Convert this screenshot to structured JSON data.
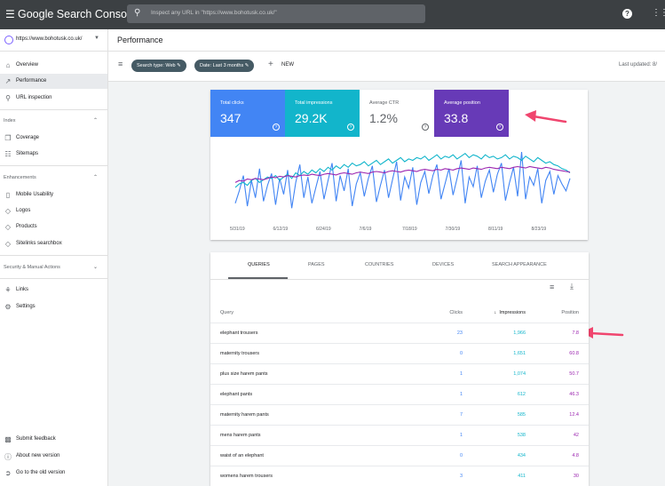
{
  "app": {
    "title": "Google Search Console"
  },
  "search": {
    "placeholder": "Inspect any URL in \"https://www.bohotusk.co.uk/\""
  },
  "property": {
    "url": "https://www.bohotusk.co.uk/"
  },
  "sidebar": {
    "items": [
      {
        "label": "Overview",
        "icon": "home-icon"
      },
      {
        "label": "Performance",
        "icon": "trending-icon",
        "active": true
      },
      {
        "label": "URL inspection",
        "icon": "search-icon"
      }
    ],
    "index_section": "Index",
    "index_items": [
      {
        "label": "Coverage",
        "icon": "file-copy-icon"
      },
      {
        "label": "Sitemaps",
        "icon": "sitemap-icon"
      }
    ],
    "enh_section": "Enhancements",
    "enh_items": [
      {
        "label": "Mobile Usability",
        "icon": "phone-icon"
      },
      {
        "label": "Logos",
        "icon": "diamond-icon"
      },
      {
        "label": "Products",
        "icon": "diamond-icon"
      },
      {
        "label": "Sitelinks searchbox",
        "icon": "diamond-icon"
      }
    ],
    "security_section": "Security & Manual Actions",
    "other_items": [
      {
        "label": "Links",
        "icon": "links-icon"
      },
      {
        "label": "Settings",
        "icon": "gear-icon"
      }
    ],
    "footer_items": [
      {
        "label": "Submit feedback",
        "icon": "feedback-icon"
      },
      {
        "label": "About new version",
        "icon": "info-icon"
      },
      {
        "label": "Go to the old version",
        "icon": "exit-icon"
      }
    ]
  },
  "header": {
    "title": "Performance"
  },
  "filters": {
    "search_type": "Search type: Web",
    "date": "Date: Last 3 months",
    "new_label": "NEW",
    "last_updated": "Last updated: 8/"
  },
  "metrics": [
    {
      "label": "Total clicks",
      "value": "347",
      "bg": "#4285f4",
      "fg": "#ffffff"
    },
    {
      "label": "Total impressions",
      "value": "29.2K",
      "bg": "#12b5cb",
      "fg": "#ffffff"
    },
    {
      "label": "Average CTR",
      "value": "1.2%",
      "bg": "#ffffff",
      "fg": "#5f6368"
    },
    {
      "label": "Average position",
      "value": "33.8",
      "bg": "#673ab7",
      "fg": "#ffffff"
    }
  ],
  "chart_data": {
    "type": "line",
    "x_ticks": [
      "5/31/19",
      "6/12/19",
      "6/24/19",
      "7/6/19",
      "7/18/19",
      "7/30/19",
      "8/11/19",
      "8/23/19"
    ],
    "series": [
      {
        "color": "#4285f4",
        "values": [
          0.22,
          0.4,
          0.62,
          0.18,
          0.55,
          0.3,
          0.72,
          0.25,
          0.48,
          0.65,
          0.2,
          0.58,
          0.35,
          0.7,
          0.15,
          0.52,
          0.78,
          0.3,
          0.6,
          0.22,
          0.45,
          0.68,
          0.28,
          0.55,
          0.8,
          0.25,
          0.62,
          0.4,
          0.72,
          0.18,
          0.5,
          0.66,
          0.32,
          0.58,
          0.76,
          0.24,
          0.48,
          0.7,
          0.3,
          0.56,
          0.82,
          0.26,
          0.6,
          0.44,
          0.74,
          0.2,
          0.52,
          0.68,
          0.36,
          0.62,
          0.78,
          0.28,
          0.5,
          0.72,
          0.34,
          0.58,
          0.84,
          0.22,
          0.6,
          0.46,
          0.76,
          0.3,
          0.54,
          0.7,
          0.38,
          0.64,
          0.8,
          0.26,
          0.52,
          0.74,
          0.32,
          0.96,
          0.28,
          0.6,
          0.48,
          0.72,
          0.22,
          0.55,
          0.68,
          0.35,
          0.62,
          0.5,
          0.4,
          0.58
        ]
      },
      {
        "color": "#12b5cb",
        "values": [
          0.45,
          0.5,
          0.52,
          0.48,
          0.55,
          0.58,
          0.52,
          0.56,
          0.6,
          0.58,
          0.62,
          0.55,
          0.6,
          0.64,
          0.58,
          0.66,
          0.62,
          0.68,
          0.64,
          0.7,
          0.66,
          0.72,
          0.68,
          0.74,
          0.7,
          0.76,
          0.72,
          0.78,
          0.74,
          0.8,
          0.76,
          0.78,
          0.82,
          0.76,
          0.8,
          0.84,
          0.78,
          0.82,
          0.86,
          0.8,
          0.84,
          0.88,
          0.82,
          0.86,
          0.84,
          0.88,
          0.86,
          0.9,
          0.84,
          0.88,
          0.92,
          0.86,
          0.9,
          0.88,
          0.92,
          0.86,
          0.9,
          0.94,
          0.88,
          0.92,
          0.9,
          0.86,
          0.92,
          0.88,
          0.9,
          0.86,
          0.88,
          0.92,
          0.86,
          0.9,
          0.88,
          0.84,
          0.9,
          0.86,
          0.82,
          0.88,
          0.84,
          0.8,
          0.82,
          0.78,
          0.76,
          0.72,
          0.7,
          0.66
        ]
      },
      {
        "color": "#9c27b0",
        "values": [
          0.52,
          0.55,
          0.54,
          0.57,
          0.56,
          0.58,
          0.57,
          0.56,
          0.58,
          0.6,
          0.59,
          0.61,
          0.6,
          0.62,
          0.61,
          0.6,
          0.62,
          0.63,
          0.62,
          0.64,
          0.63,
          0.62,
          0.64,
          0.65,
          0.64,
          0.63,
          0.65,
          0.66,
          0.65,
          0.64,
          0.66,
          0.67,
          0.66,
          0.65,
          0.67,
          0.68,
          0.67,
          0.66,
          0.68,
          0.69,
          0.68,
          0.67,
          0.69,
          0.7,
          0.69,
          0.68,
          0.7,
          0.71,
          0.7,
          0.69,
          0.71,
          0.7,
          0.72,
          0.71,
          0.7,
          0.72,
          0.73,
          0.72,
          0.71,
          0.73,
          0.72,
          0.71,
          0.73,
          0.74,
          0.73,
          0.72,
          0.74,
          0.73,
          0.72,
          0.74,
          0.75,
          0.74,
          0.73,
          0.75,
          0.74,
          0.73,
          0.72,
          0.74,
          0.73,
          0.71,
          0.7,
          0.69,
          0.68,
          0.67
        ]
      }
    ]
  },
  "table": {
    "tabs": [
      "QUERIES",
      "PAGES",
      "COUNTRIES",
      "DEVICES",
      "SEARCH APPEARANCE"
    ],
    "columns": {
      "query": "Query",
      "clicks": "Clicks",
      "impressions": "Impressions",
      "position": "Position"
    },
    "rows": [
      {
        "query": "elephant trousers",
        "clicks": "23",
        "impressions": "1,966",
        "position": "7.8"
      },
      {
        "query": "maternity trousers",
        "clicks": "0",
        "impressions": "1,651",
        "position": "60.8"
      },
      {
        "query": "plus size harem pants",
        "clicks": "1",
        "impressions": "1,074",
        "position": "50.7"
      },
      {
        "query": "elephant pants",
        "clicks": "1",
        "impressions": "612",
        "position": "46.3"
      },
      {
        "query": "maternity harem pants",
        "clicks": "7",
        "impressions": "585",
        "position": "12.4"
      },
      {
        "query": "mens harem pants",
        "clicks": "1",
        "impressions": "538",
        "position": "42"
      },
      {
        "query": "waist of an elephant",
        "clicks": "0",
        "impressions": "434",
        "position": "4.8"
      },
      {
        "query": "womens harem trousers",
        "clicks": "3",
        "impressions": "411",
        "position": "30"
      }
    ]
  },
  "annotation_color": "#f0456e"
}
